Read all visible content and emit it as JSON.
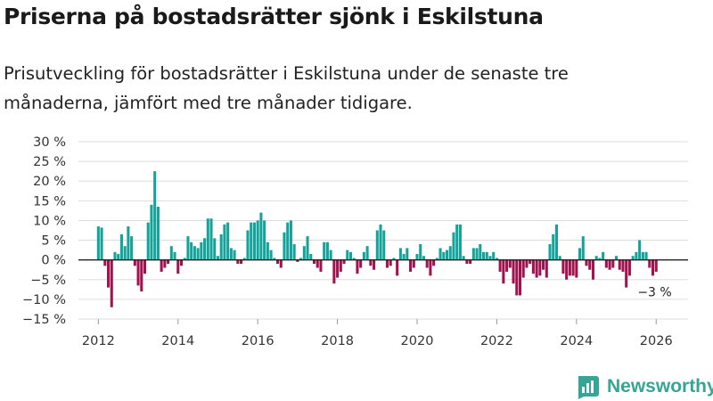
{
  "title": "Priserna på bostadsrätter sjönk i Eskilstuna",
  "subtitle": "Prisutveckling för bostadsrätter i Eskilstuna under de senaste tre månaderna, jämfört med tre månader tidigare.",
  "brand": {
    "name": "Newsworthy"
  },
  "colors": {
    "positive": "#14a39a",
    "negative": "#a0134f",
    "grid": "#dddddd",
    "axis": "#222222",
    "brand": "#35a596"
  },
  "chart_data": {
    "type": "bar",
    "title": "Priserna på bostadsrätter sjönk i Eskilstuna",
    "xlabel": "",
    "ylabel": "",
    "unit": "%",
    "ylim": [
      -15,
      30
    ],
    "yticks": [
      30,
      25,
      20,
      15,
      10,
      5,
      0,
      -5,
      -10,
      -15
    ],
    "ytick_labels": [
      "30 %",
      "25 %",
      "20 %",
      "15 %",
      "10 %",
      "5 %",
      "0 %",
      "−5 %",
      "−10 %",
      "−15 %"
    ],
    "xlim": [
      2011.5,
      2026.8
    ],
    "xticks": [
      2012,
      2014,
      2016,
      2018,
      2020,
      2022,
      2024,
      2026
    ],
    "xtick_labels": [
      "2012",
      "2014",
      "2016",
      "2018",
      "2020",
      "2022",
      "2024",
      "2026"
    ],
    "start": {
      "year": 2012,
      "month": 1
    },
    "annotation": {
      "text": "−3 %",
      "index": 167
    },
    "values": [
      8.5,
      8.2,
      -1.5,
      -7,
      -12,
      2,
      1.5,
      6.5,
      3.5,
      8.5,
      6,
      -1.5,
      -6.5,
      -8,
      -3.5,
      9.5,
      14,
      22.5,
      13.5,
      -3,
      -2,
      -1,
      3.5,
      2,
      -3.5,
      -1.5,
      0.5,
      6,
      4.5,
      3.5,
      3,
      4.5,
      5.5,
      10.5,
      10.5,
      5.5,
      1,
      6.5,
      9,
      9.5,
      3,
      2.5,
      -1,
      -1,
      0.5,
      7.5,
      9.5,
      9.5,
      10,
      12,
      10,
      4.5,
      2.5,
      0.5,
      -1,
      -2,
      7,
      9.5,
      10,
      4,
      -0.5,
      0.5,
      3.5,
      6,
      1.5,
      -1,
      -2,
      -3,
      4.5,
      4.5,
      2.5,
      -6,
      -4.5,
      -3,
      -1,
      2.5,
      2,
      0.5,
      -3.5,
      -2,
      2,
      3.5,
      -1.5,
      -2.5,
      7.5,
      9,
      7.5,
      -2,
      -1.5,
      0.5,
      -4,
      3,
      1.5,
      3,
      -3,
      -2,
      1.5,
      4,
      1,
      -2,
      -4,
      -1.5,
      0.5,
      3,
      2,
      2.5,
      3.5,
      7,
      9,
      9,
      1,
      -1,
      -1,
      3,
      3,
      4,
      2,
      2,
      1,
      2,
      0.5,
      -3,
      -6,
      -3,
      -2,
      -6,
      -9,
      -9,
      -4.5,
      -2,
      -1,
      -3.5,
      -4.5,
      -4,
      -2.5,
      -4.5,
      4,
      6.5,
      9,
      1,
      -3.5,
      -5,
      -4,
      -4,
      -4.5,
      3,
      6,
      -1.5,
      -2.5,
      -5,
      1,
      0.5,
      2,
      -2,
      -2.5,
      -2,
      1,
      -2.5,
      -3,
      -7,
      -4,
      1,
      2,
      5,
      2,
      2,
      -2,
      -4,
      -3
    ]
  }
}
